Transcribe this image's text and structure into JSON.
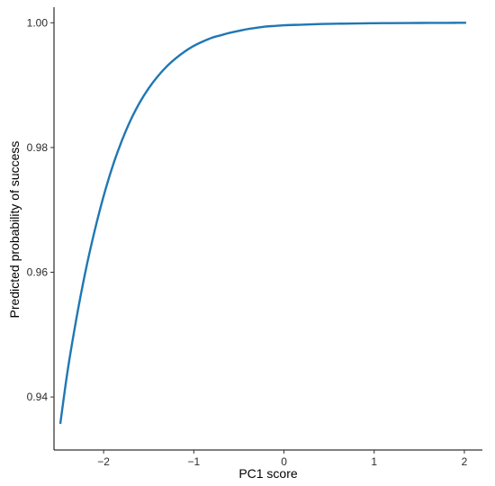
{
  "chart_data": {
    "type": "line",
    "title": "",
    "xlabel": "PC1 score",
    "ylabel": "Predicted probability of success",
    "xlim": [
      -2.55,
      2.2
    ],
    "ylim": [
      0.9315,
      1.0025
    ],
    "x_ticks": [
      {
        "value": -2,
        "label": "−2"
      },
      {
        "value": -1,
        "label": "−1"
      },
      {
        "value": 0,
        "label": "0"
      },
      {
        "value": 1,
        "label": "1"
      },
      {
        "value": 2,
        "label": "2"
      }
    ],
    "y_ticks": [
      {
        "value": 0.94,
        "label": "0.94"
      },
      {
        "value": 0.96,
        "label": "0.96"
      },
      {
        "value": 0.98,
        "label": "0.98"
      },
      {
        "value": 1.0,
        "label": "1.00"
      }
    ],
    "grid": false,
    "legend": "none",
    "series": [
      {
        "color": "#1f77b4",
        "x": [
          -2.48,
          -2.4,
          -2.3,
          -2.2,
          -2.1,
          -2.0,
          -1.9,
          -1.8,
          -1.7,
          -1.6,
          -1.5,
          -1.4,
          -1.3,
          -1.2,
          -1.1,
          -1.0,
          -0.9,
          -0.8,
          -0.7,
          -0.6,
          -0.5,
          -0.4,
          -0.3,
          -0.2,
          -0.1,
          0.0,
          0.2,
          0.4,
          0.6,
          0.8,
          1.0,
          1.2,
          1.4,
          1.6,
          1.8,
          2.02
        ],
        "y": [
          0.9357,
          0.9441,
          0.9527,
          0.9602,
          0.9666,
          0.9722,
          0.977,
          0.981,
          0.9844,
          0.9872,
          0.9895,
          0.9914,
          0.993,
          0.9943,
          0.9954,
          0.9963,
          0.997,
          0.9976,
          0.998,
          0.9984,
          0.9987,
          0.999,
          0.9992,
          0.9994,
          0.9995,
          0.9996,
          0.9997,
          0.9998,
          0.99985,
          0.9999,
          0.99993,
          0.99995,
          0.99997,
          0.99998,
          0.99999,
          1.0
        ]
      }
    ]
  }
}
